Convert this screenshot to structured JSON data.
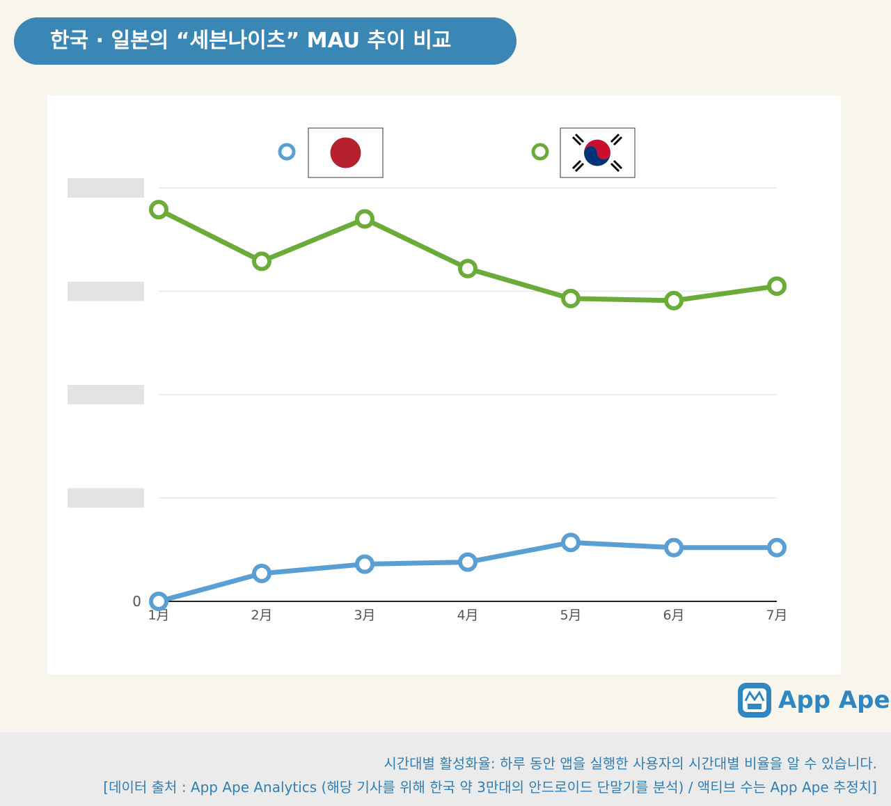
{
  "header": {
    "title": "한국 · 일본의 “세븐나이츠” MAU 추이 비교"
  },
  "chart_data": {
    "type": "line",
    "categories": [
      "1月",
      "2月",
      "3月",
      "4月",
      "5月",
      "6月",
      "7月"
    ],
    "series": [
      {
        "color": "#5a9fd4",
        "values": [
          0,
          0.27,
          0.36,
          0.38,
          0.57,
          0.52,
          0.52
        ]
      },
      {
        "color": "#6aab3a",
        "values": [
          3.79,
          3.29,
          3.7,
          3.22,
          2.93,
          2.91,
          3.05
        ]
      }
    ],
    "ylim": [
      0,
      4
    ],
    "yticks": [
      0,
      {
        "value": 1,
        "label": null
      },
      {
        "value": 2,
        "label": null
      },
      {
        "value": 3,
        "label": null
      },
      {
        "value": 4,
        "label": null
      }
    ],
    "grid": true
  },
  "logo": {
    "text": "App Ape"
  },
  "footer": {
    "line1": "시간대별 활성화율: 하루 동안 앱을 실행한 사용자의 시간대별 비율을 알 수 있습니다.",
    "line2": "[데이터 출처 : App Ape Analytics (해당 기사를 위해 한국 약 3만대의 안드로이드 단말기를 분석) / 액티브 수는 App Ape 추정치]"
  }
}
